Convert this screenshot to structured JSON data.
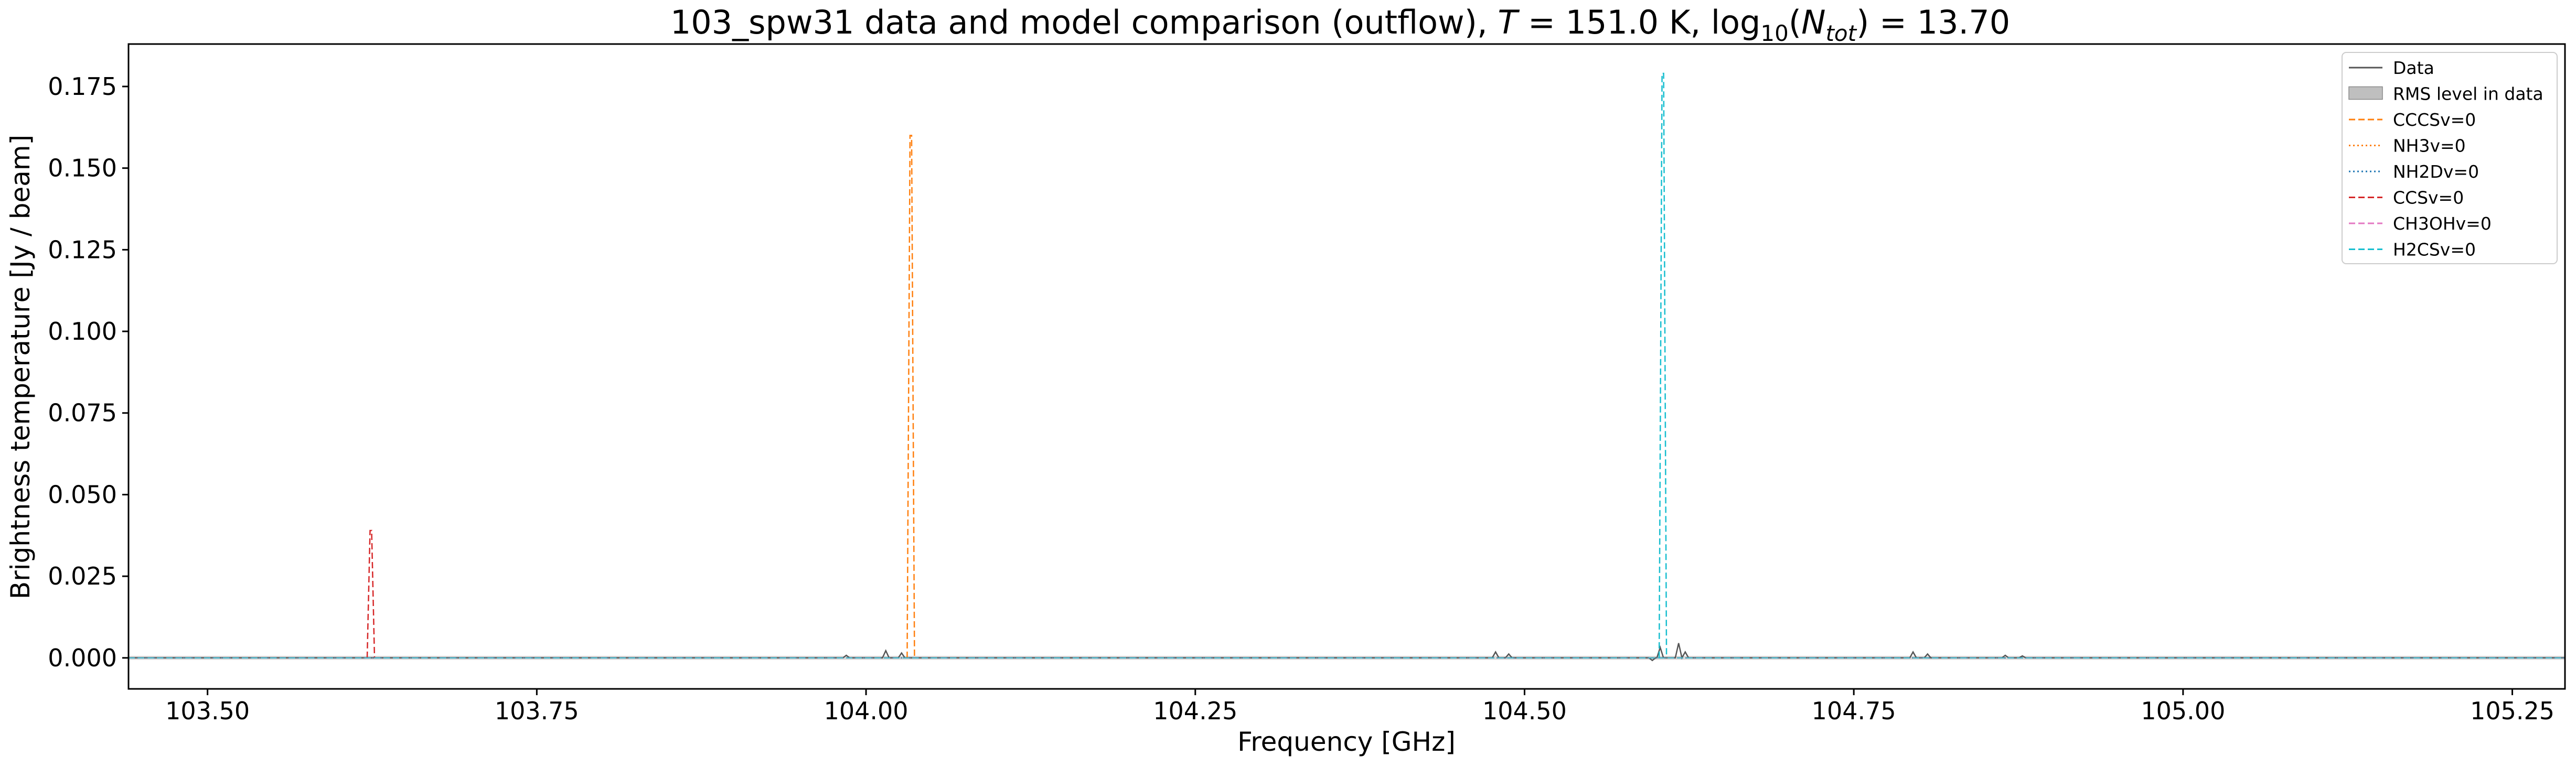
{
  "chart_data": {
    "type": "line",
    "title": {
      "prefix": "103_spw31 data and model comparison (outflow), ",
      "t_symbol": "T",
      "t_value": " = 151.0 K, log",
      "log_sub": "10",
      "paren_open": "(",
      "n_symbol": "N",
      "n_sub": "tot",
      "suffix": ") = 13.70"
    },
    "xlabel": "Frequency [GHz]",
    "ylabel": "Brightness temperature [Jy / beam]",
    "xlim": [
      103.44,
      105.29
    ],
    "ylim": [
      -0.0095,
      0.188
    ],
    "xticks": [
      103.5,
      103.75,
      104.0,
      104.25,
      104.5,
      104.75,
      105.0,
      105.25
    ],
    "xtick_labels": [
      "103.50",
      "103.75",
      "104.00",
      "104.25",
      "104.50",
      "104.75",
      "105.00",
      "105.25"
    ],
    "yticks": [
      0.0,
      0.025,
      0.05,
      0.075,
      0.1,
      0.125,
      0.15,
      0.175
    ],
    "ytick_labels": [
      "0.000",
      "0.025",
      "0.050",
      "0.075",
      "0.100",
      "0.125",
      "0.150",
      "0.175"
    ],
    "grid": false,
    "legend_position": "top-right",
    "legend": [
      {
        "label": "Data",
        "style": "solid",
        "color": "#555555"
      },
      {
        "label": "RMS level in data",
        "style": "patch",
        "color": "#bfbfbf"
      },
      {
        "label": "CCCSv=0",
        "style": "dashed",
        "color": "#ff7f0e"
      },
      {
        "label": "NH3v=0",
        "style": "dotted",
        "color": "#ff7f0e"
      },
      {
        "label": "NH2Dv=0",
        "style": "dotted",
        "color": "#1f77b4"
      },
      {
        "label": "CCSv=0",
        "style": "dashed",
        "color": "#d62728"
      },
      {
        "label": "CH3OHv=0",
        "style": "dashed",
        "color": "#e377c2"
      },
      {
        "label": "H2CSv=0",
        "style": "dashed",
        "color": "#17becf"
      }
    ],
    "series": [
      {
        "name": "Data",
        "color": "#555555",
        "baseline": 0.0,
        "features": [
          {
            "x": 103.985,
            "y": 0.0008
          },
          {
            "x": 104.015,
            "y": 0.0022
          },
          {
            "x": 104.027,
            "y": 0.0015
          },
          {
            "x": 104.478,
            "y": 0.0018
          },
          {
            "x": 104.488,
            "y": 0.0012
          },
          {
            "x": 104.597,
            "y": -0.0008
          },
          {
            "x": 104.603,
            "y": 0.0032
          },
          {
            "x": 104.617,
            "y": 0.0045
          },
          {
            "x": 104.622,
            "y": 0.0018
          },
          {
            "x": 104.795,
            "y": 0.0018
          },
          {
            "x": 104.806,
            "y": 0.0012
          },
          {
            "x": 104.865,
            "y": 0.0008
          },
          {
            "x": 104.878,
            "y": 0.0006
          }
        ]
      },
      {
        "name": "CCCSv=0",
        "color": "#ff7f0e",
        "style": "dashed",
        "peaks": [
          {
            "x": 104.034,
            "y": 0.16
          }
        ]
      },
      {
        "name": "NH3v=0",
        "color": "#ff7f0e",
        "style": "dotted",
        "peaks": []
      },
      {
        "name": "NH2Dv=0",
        "color": "#1f77b4",
        "style": "dotted",
        "peaks": []
      },
      {
        "name": "CCSv=0",
        "color": "#d62728",
        "style": "dashed",
        "peaks": [
          {
            "x": 103.624,
            "y": 0.039
          }
        ]
      },
      {
        "name": "CH3OHv=0",
        "color": "#e377c2",
        "style": "dashed",
        "peaks": []
      },
      {
        "name": "H2CSv=0",
        "color": "#17becf",
        "style": "dashed",
        "peaks": [
          {
            "x": 104.605,
            "y": 0.179
          }
        ]
      }
    ]
  }
}
